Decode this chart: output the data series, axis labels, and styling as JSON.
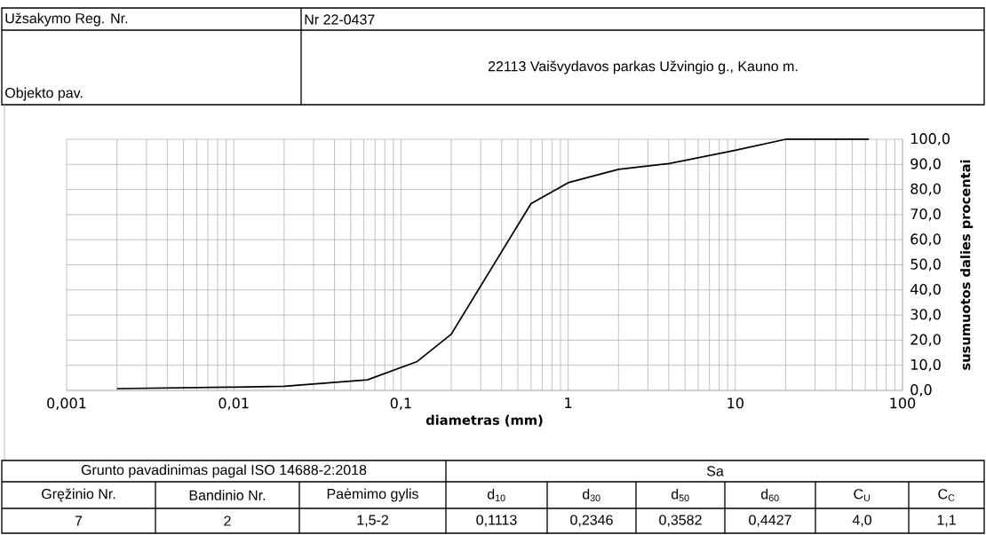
{
  "chart_data": {
    "type": "line",
    "xlabel": "diametras (mm)",
    "ylabel": "susumuotos dalies procentai",
    "x": [
      0.002,
      0.01,
      0.02,
      0.063,
      0.125,
      0.2,
      0.6,
      1,
      2,
      4,
      10,
      20,
      63
    ],
    "series": [
      {
        "color": "#000000",
        "values": [
          0.7,
          1.3,
          1.6,
          4.2,
          11.5,
          22.4,
          74.4,
          82.7,
          88.0,
          90.3,
          95.6,
          100.0,
          100.0
        ]
      }
    ],
    "log": "x",
    "xlim": [
      0.001,
      100
    ],
    "ylim": [
      0,
      100
    ],
    "xticks": [
      {
        "value": 0.001,
        "label": "0,001"
      },
      {
        "value": 0.01,
        "label": "0,01"
      },
      {
        "value": 0.1,
        "label": "0,1"
      },
      1,
      10,
      100
    ],
    "yticks": [
      {
        "value": 0,
        "label": "0,0"
      },
      {
        "value": 10,
        "label": "10,0"
      },
      {
        "value": 20,
        "label": "20,0"
      },
      {
        "value": 30,
        "label": "30,0"
      },
      {
        "value": 40,
        "label": "40,0"
      },
      {
        "value": 50,
        "label": "50,0"
      },
      {
        "value": 60,
        "label": "60,0"
      },
      {
        "value": 70,
        "label": "70,0"
      },
      {
        "value": 80,
        "label": "80,0"
      },
      {
        "value": 90,
        "label": "90,0"
      },
      {
        "value": 100,
        "label": "100,0"
      }
    ],
    "grid": true,
    "marker": "none",
    "line_style": "solid",
    "annotations": [
      "Užsakymo Reg. Nr.",
      "Nr 22-0437",
      "22113   Vaišvydavos parkas Užvingio g., Kauno m.",
      "Objekto pav.",
      "Grunto pavadinimas pagal ISO 14688-2:2018",
      "Sa",
      "Gręžinio Nr.",
      "Bandinio Nr.",
      "Paėmimo gylis",
      "d$_{10}$",
      "d$_{30}$",
      "d$_{50}$",
      "d$_{60}$",
      "C$_{U}$",
      "C$_{C}$",
      "7",
      "2",
      "1,5-2",
      "0,1113",
      "0,2346",
      "0,3582",
      "0,4427",
      "4,0",
      "1,1"
    ]
  }
}
